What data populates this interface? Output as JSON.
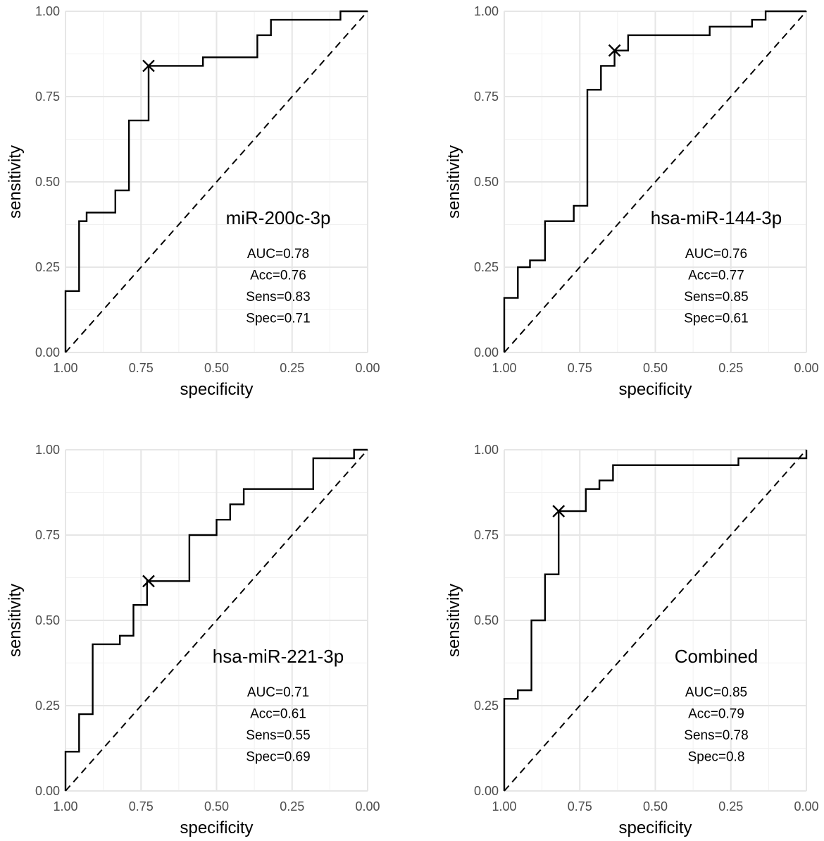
{
  "chart_data": [
    {
      "type": "line",
      "label": "miR-200c-3p",
      "xlabel": "specificity",
      "ylabel": "sensitivity",
      "xlim": [
        1.0,
        0.0
      ],
      "ylim": [
        0.0,
        1.0
      ],
      "x_reversed": true,
      "ticks": [
        "0.00",
        "0.25",
        "0.50",
        "0.75",
        "1.00"
      ],
      "stats": [
        "AUC=0.78",
        "Acc=0.76",
        "Sens=0.83",
        "Spec=0.71"
      ],
      "best_cutoff": {
        "specificity": 0.725,
        "sensitivity": 0.84
      },
      "roc": {
        "specificity": [
          1.0,
          1.0,
          0.955,
          0.955,
          0.93,
          0.93,
          0.835,
          0.835,
          0.79,
          0.79,
          0.725,
          0.725,
          0.545,
          0.545,
          0.365,
          0.365,
          0.32,
          0.32,
          0.09,
          0.09,
          0.0
        ],
        "sensitivity": [
          0.0,
          0.18,
          0.18,
          0.385,
          0.385,
          0.41,
          0.41,
          0.475,
          0.475,
          0.68,
          0.68,
          0.84,
          0.84,
          0.865,
          0.865,
          0.93,
          0.93,
          0.975,
          0.975,
          1.0,
          1.0
        ]
      }
    },
    {
      "type": "line",
      "label": "hsa-miR-144-3p",
      "xlabel": "specificity",
      "ylabel": "sensitivity",
      "xlim": [
        1.0,
        0.0
      ],
      "ylim": [
        0.0,
        1.0
      ],
      "x_reversed": true,
      "ticks": [
        "0.00",
        "0.25",
        "0.50",
        "0.75",
        "1.00"
      ],
      "stats": [
        "AUC=0.76",
        "Acc=0.77",
        "Sens=0.85",
        "Spec=0.61"
      ],
      "best_cutoff": {
        "specificity": 0.635,
        "sensitivity": 0.885
      },
      "roc": {
        "specificity": [
          1.0,
          1.0,
          0.955,
          0.955,
          0.915,
          0.915,
          0.865,
          0.865,
          0.77,
          0.77,
          0.725,
          0.725,
          0.68,
          0.68,
          0.635,
          0.635,
          0.59,
          0.59,
          0.32,
          0.32,
          0.18,
          0.18,
          0.135,
          0.135,
          0.0
        ],
        "sensitivity": [
          0.0,
          0.16,
          0.16,
          0.25,
          0.25,
          0.27,
          0.27,
          0.385,
          0.385,
          0.43,
          0.43,
          0.77,
          0.77,
          0.84,
          0.84,
          0.885,
          0.885,
          0.93,
          0.93,
          0.955,
          0.955,
          0.975,
          0.975,
          1.0,
          1.0
        ]
      }
    },
    {
      "type": "line",
      "label": "hsa-miR-221-3p",
      "xlabel": "specificity",
      "ylabel": "sensitivity",
      "xlim": [
        1.0,
        0.0
      ],
      "ylim": [
        0.0,
        1.0
      ],
      "x_reversed": true,
      "ticks": [
        "0.00",
        "0.25",
        "0.50",
        "0.75",
        "1.00"
      ],
      "stats": [
        "AUC=0.71",
        "Acc=0.61",
        "Sens=0.55",
        "Spec=0.69"
      ],
      "best_cutoff": {
        "specificity": 0.725,
        "sensitivity": 0.615
      },
      "roc": {
        "specificity": [
          1.0,
          1.0,
          0.955,
          0.955,
          0.91,
          0.91,
          0.82,
          0.82,
          0.775,
          0.775,
          0.73,
          0.73,
          0.59,
          0.59,
          0.5,
          0.5,
          0.455,
          0.455,
          0.41,
          0.41,
          0.18,
          0.18,
          0.045,
          0.045,
          0.0
        ],
        "sensitivity": [
          0.0,
          0.115,
          0.115,
          0.225,
          0.225,
          0.43,
          0.43,
          0.455,
          0.455,
          0.545,
          0.545,
          0.615,
          0.615,
          0.75,
          0.75,
          0.795,
          0.795,
          0.84,
          0.84,
          0.885,
          0.885,
          0.975,
          0.975,
          1.0,
          1.0
        ]
      }
    },
    {
      "type": "line",
      "label": "Combined",
      "xlabel": "specificity",
      "ylabel": "sensitivity",
      "xlim": [
        1.0,
        0.0
      ],
      "ylim": [
        0.0,
        1.0
      ],
      "x_reversed": true,
      "ticks": [
        "0.00",
        "0.25",
        "0.50",
        "0.75",
        "1.00"
      ],
      "stats": [
        "AUC=0.85",
        "Acc=0.79",
        "Sens=0.78",
        "Spec=0.8"
      ],
      "best_cutoff": {
        "specificity": 0.82,
        "sensitivity": 0.82
      },
      "roc": {
        "specificity": [
          1.0,
          1.0,
          0.955,
          0.955,
          0.91,
          0.91,
          0.865,
          0.865,
          0.82,
          0.82,
          0.73,
          0.73,
          0.685,
          0.685,
          0.64,
          0.64,
          0.225,
          0.225,
          0.0,
          0.0
        ],
        "sensitivity": [
          0.0,
          0.27,
          0.27,
          0.295,
          0.295,
          0.5,
          0.5,
          0.635,
          0.635,
          0.82,
          0.82,
          0.885,
          0.885,
          0.91,
          0.91,
          0.955,
          0.955,
          0.975,
          0.975,
          1.0
        ]
      }
    }
  ]
}
